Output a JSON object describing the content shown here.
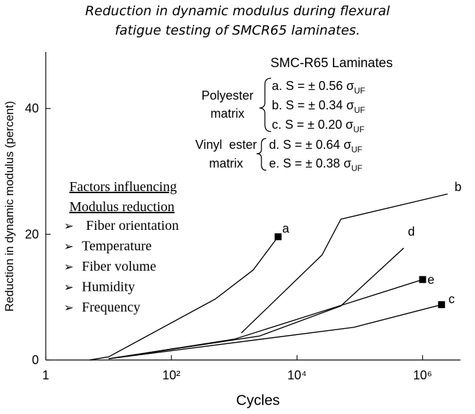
{
  "header": {
    "title_line1": "Reduction in dynamic modulus during flexural",
    "title_line2": "fatigue testing of SMCR65 laminates."
  },
  "chart_data": {
    "type": "line",
    "title": "",
    "xlabel": "Cycles",
    "ylabel": "Reduction in dynamic modulus (percent)",
    "x_scale": "log",
    "xlim": [
      1,
      4000000
    ],
    "ylim": [
      0,
      49
    ],
    "x_ticks": [
      {
        "value": 1,
        "label": "1"
      },
      {
        "value": 100,
        "label": "10²"
      },
      {
        "value": 10000,
        "label": "10⁴"
      },
      {
        "value": 1000000,
        "label": "10⁶"
      }
    ],
    "y_ticks": [
      {
        "value": 0,
        "label": "0"
      },
      {
        "value": 20,
        "label": "20"
      },
      {
        "value": 40,
        "label": "40"
      }
    ],
    "legend_title": "SMC-R65 Laminates",
    "legend_groups": [
      {
        "name_lines": [
          "Polyester",
          "matrix"
        ],
        "entries": [
          {
            "id": "a",
            "label": "a. S = ± 0.56 σ",
            "sub": "UF"
          },
          {
            "id": "b",
            "label": "b. S = ± 0.34 σ",
            "sub": "UF"
          },
          {
            "id": "c",
            "label": "c. S = ± 0.20 σ",
            "sub": "UF"
          }
        ]
      },
      {
        "name_lines": [
          "Vinyl  ester",
          "matrix"
        ],
        "entries": [
          {
            "id": "d",
            "label": "d. S = ± 0.64 σ",
            "sub": "UF"
          },
          {
            "id": "e",
            "label": "e. S = ± 0.38 σ",
            "sub": "UF"
          }
        ]
      }
    ],
    "series": [
      {
        "name": "a",
        "end_marker": true,
        "x": [
          5,
          10,
          500,
          2000,
          5000
        ],
        "y": [
          0,
          0.5,
          9.7,
          14.3,
          19.6
        ]
      },
      {
        "name": "b",
        "end_marker": false,
        "x": [
          1300,
          25000,
          50000,
          2500000
        ],
        "y": [
          4.3,
          16.7,
          22.4,
          26.4
        ]
      },
      {
        "name": "c",
        "end_marker": true,
        "x": [
          10,
          80000,
          2000000
        ],
        "y": [
          0.2,
          5.2,
          8.8
        ]
      },
      {
        "name": "d",
        "end_marker": false,
        "x": [
          10,
          2500,
          50000,
          500000
        ],
        "y": [
          0.2,
          3.8,
          8.6,
          17.8
        ]
      },
      {
        "name": "e",
        "end_marker": true,
        "x": [
          10,
          1000,
          1000000
        ],
        "y": [
          0.2,
          3.3,
          12.8
        ]
      }
    ]
  },
  "factors": {
    "heading_line1": "Factors influencing",
    "heading_line2": "Modulus reduction",
    "bullet": "➢",
    "items": [
      "Fiber orientation",
      "Temperature",
      "Fiber volume",
      "Humidity",
      "Frequency"
    ]
  }
}
